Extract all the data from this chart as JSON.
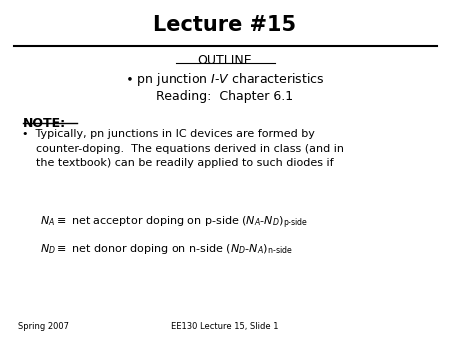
{
  "title": "Lecture #15",
  "outline_label": "OUTLINE",
  "footer_left": "Spring 2007",
  "footer_center": "EE130 Lecture 15, Slide 1",
  "bg_color": "#ffffff",
  "text_color": "#000000",
  "border_color": "#000000"
}
